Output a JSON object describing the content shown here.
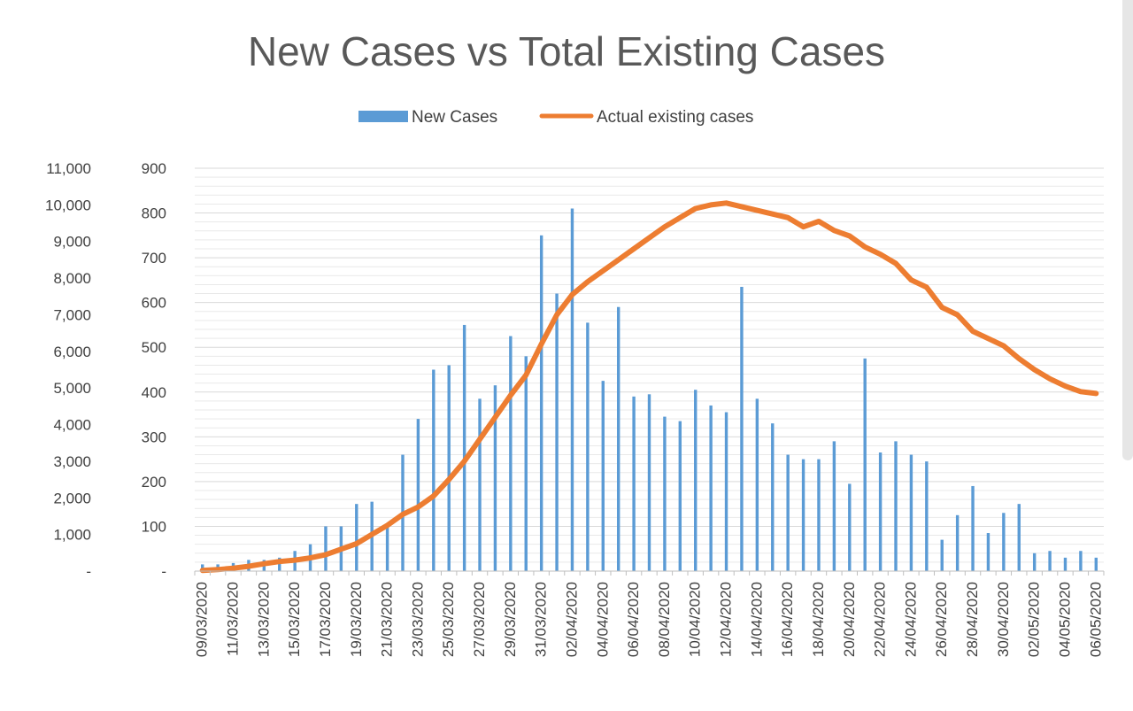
{
  "chart_data": {
    "type": "bar+line",
    "title": "New Cases vs Total Existing Cases",
    "legend_position": "top",
    "grid": true,
    "colors": {
      "bars": "#5b9bd5",
      "line": "#ed7d31",
      "grid": "#d9d9d9",
      "text": "#595959"
    },
    "left_axis": {
      "range": [
        0,
        11000
      ],
      "ticks": [
        "-",
        "1,000",
        "2,000",
        "3,000",
        "4,000",
        "5,000",
        "6,000",
        "7,000",
        "8,000",
        "9,000",
        "10,000",
        "11,000"
      ]
    },
    "right_axis": {
      "range": [
        0,
        900
      ],
      "ticks": [
        "-",
        "100",
        "200",
        "300",
        "400",
        "500",
        "600",
        "700",
        "800",
        "900"
      ]
    },
    "x_tick_labels": [
      "09/03/2020",
      "11/03/2020",
      "13/03/2020",
      "15/03/2020",
      "17/03/2020",
      "19/03/2020",
      "21/03/2020",
      "23/03/2020",
      "25/03/2020",
      "27/03/2020",
      "29/03/2020",
      "31/03/2020",
      "02/04/2020",
      "04/04/2020",
      "06/04/2020",
      "08/04/2020",
      "10/04/2020",
      "12/04/2020",
      "14/04/2020",
      "16/04/2020",
      "18/04/2020",
      "20/04/2020",
      "22/04/2020",
      "24/04/2020",
      "26/04/2020",
      "28/04/2020",
      "30/04/2020",
      "02/05/2020",
      "04/05/2020",
      "06/05/2020"
    ],
    "series": [
      {
        "name": "New Cases",
        "type": "bar",
        "axis": "right",
        "values": [
          15,
          15,
          18,
          25,
          25,
          30,
          45,
          60,
          100,
          100,
          150,
          155,
          100,
          260,
          340,
          450,
          460,
          550,
          385,
          415,
          525,
          480,
          750,
          620,
          810,
          555,
          425,
          590,
          390,
          395,
          345,
          335,
          405,
          370,
          355,
          635,
          385,
          330,
          260,
          250,
          250,
          290,
          195,
          475,
          265,
          290,
          260,
          245,
          70,
          125,
          190,
          85,
          130,
          150,
          40,
          45,
          30,
          45,
          30
        ]
      },
      {
        "name": "Actual existing cases",
        "type": "line",
        "axis": "left",
        "values": [
          20,
          40,
          80,
          130,
          200,
          260,
          300,
          360,
          450,
          600,
          750,
          1000,
          1250,
          1550,
          1750,
          2050,
          2500,
          3000,
          3600,
          4200,
          4800,
          5350,
          6200,
          7000,
          7550,
          7900,
          8200,
          8500,
          8800,
          9100,
          9400,
          9650,
          9900,
          10000,
          10050,
          9950,
          9850,
          9750,
          9650,
          9400,
          9550,
          9300,
          9150,
          8850,
          8650,
          8400,
          7950,
          7750,
          7200,
          7000,
          6550,
          6350,
          6150,
          5800,
          5500,
          5250,
          5050,
          4900,
          4850
        ]
      }
    ]
  }
}
